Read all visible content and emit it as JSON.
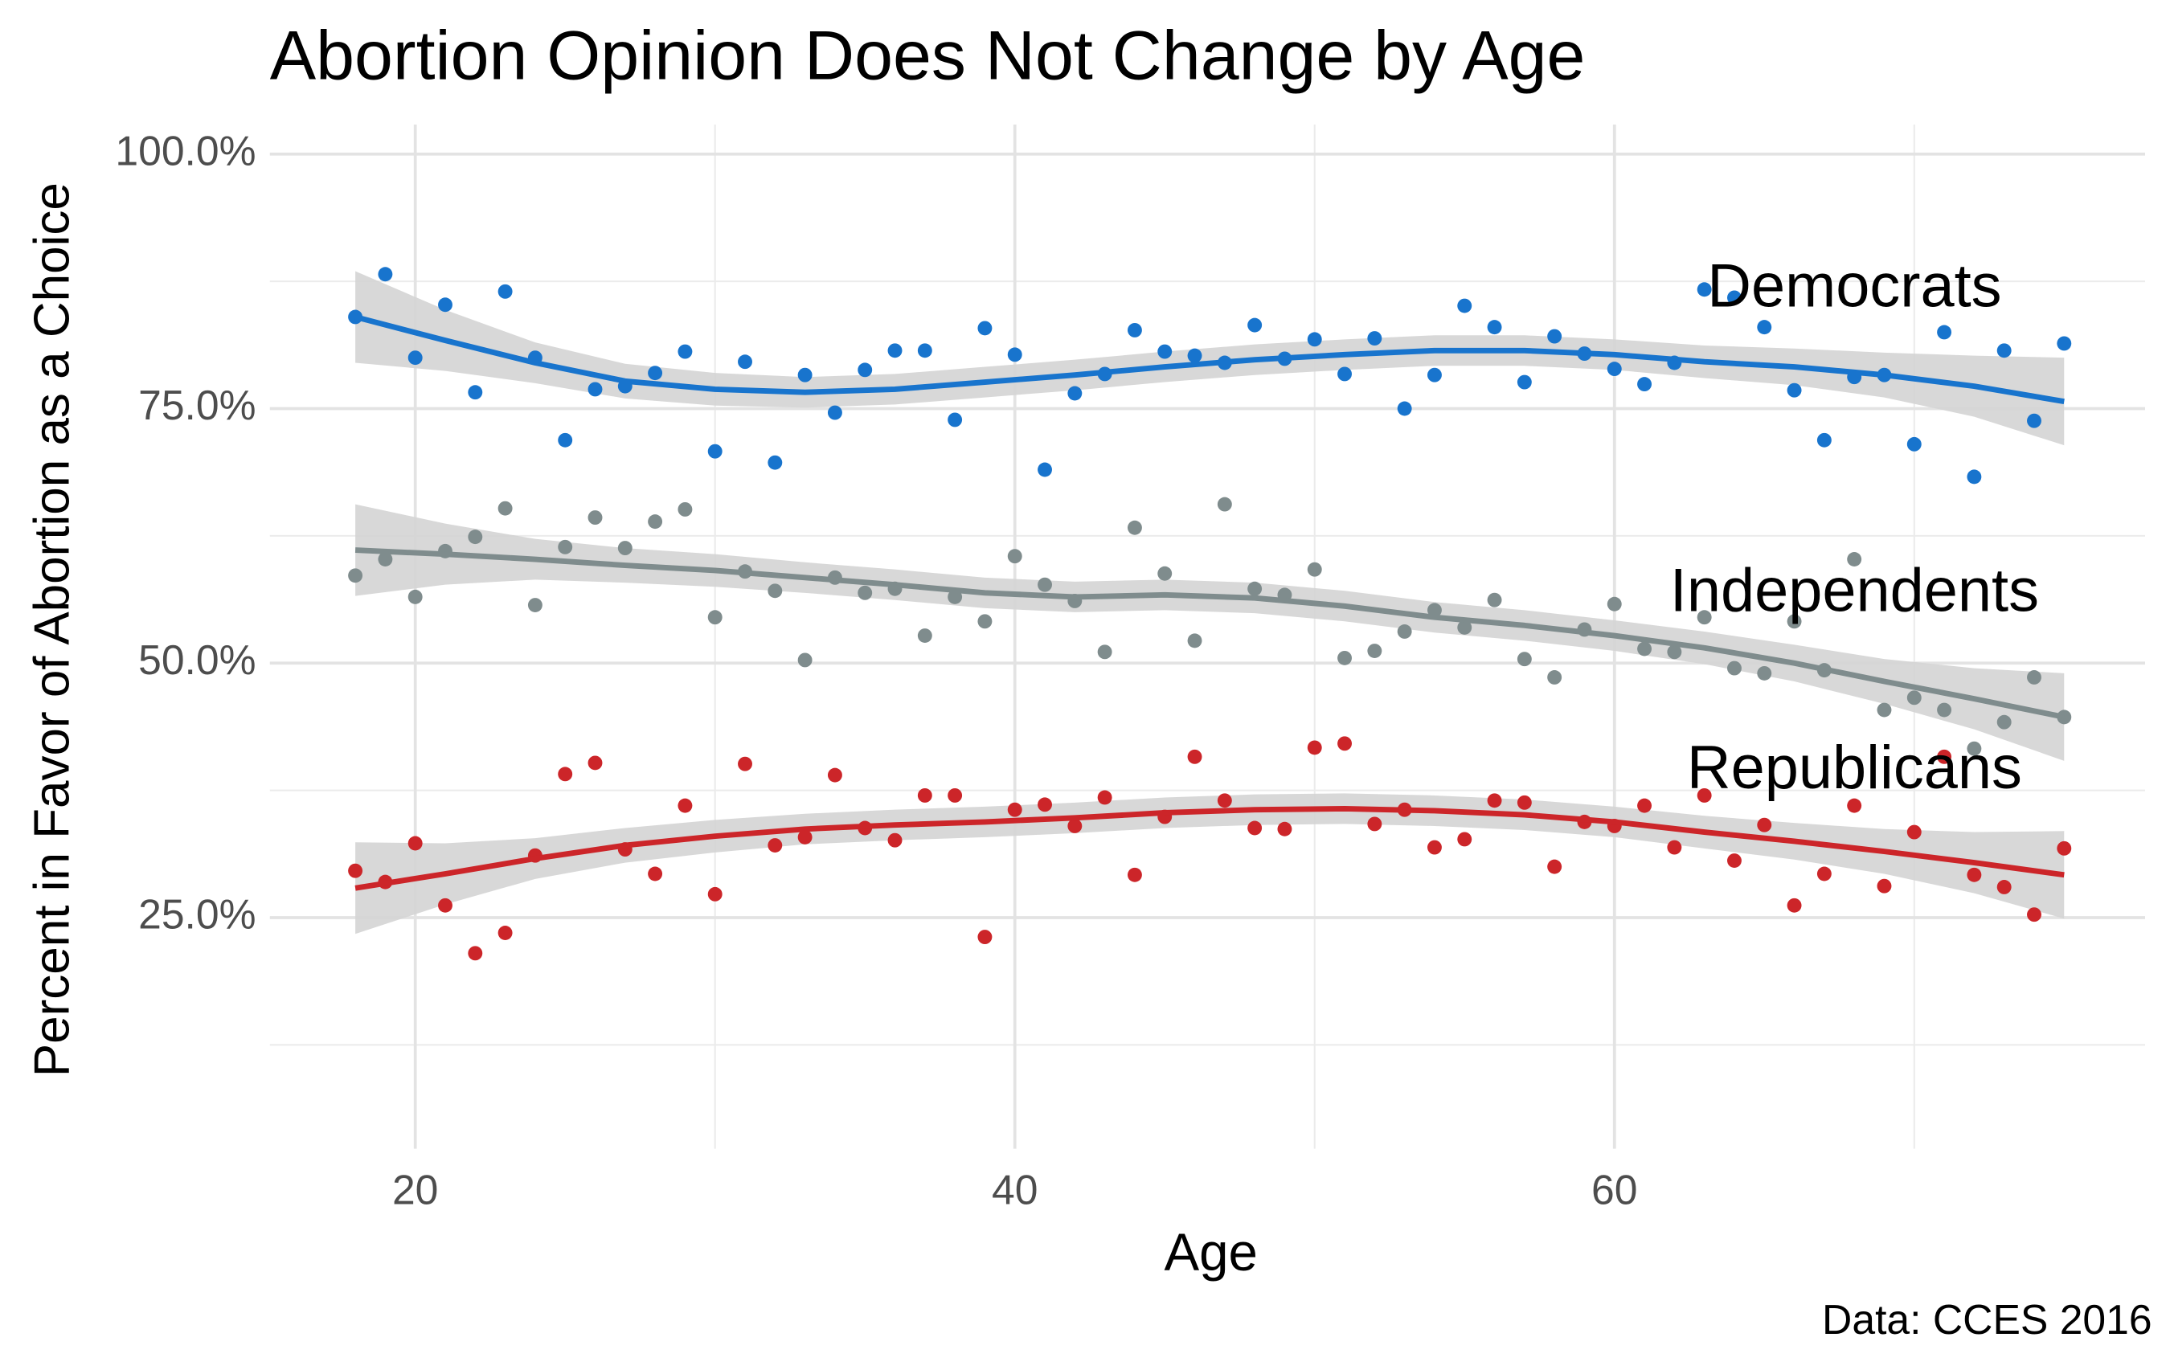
{
  "chart_data": {
    "type": "scatter",
    "title": "Abortion Opinion Does Not Change by Age",
    "xlabel": "Age",
    "ylabel": "Percent in Favor of Abortion as a Choice",
    "caption": "Data: CCES 2016",
    "xlim": [
      15.15,
      77.7
    ],
    "ylim": [
      2.3,
      102.9
    ],
    "xticks": [
      20,
      40,
      60
    ],
    "xminor": [
      30,
      50,
      70
    ],
    "yticks": [
      {
        "value": 25,
        "label": "25.0%"
      },
      {
        "value": 50,
        "label": "50.0%"
      },
      {
        "value": 75,
        "label": "75.0%"
      },
      {
        "value": 100,
        "label": "100.0%"
      }
    ],
    "yminor": [
      12.5,
      37.5,
      62.5,
      87.5
    ],
    "grid": true,
    "band_color": "#d4d4d4",
    "x": [
      18,
      19,
      20,
      21,
      22,
      23,
      24,
      25,
      26,
      27,
      28,
      29,
      30,
      31,
      32,
      33,
      34,
      35,
      36,
      37,
      38,
      39,
      40,
      41,
      42,
      43,
      44,
      45,
      46,
      47,
      48,
      49,
      50,
      51,
      52,
      53,
      54,
      55,
      56,
      57,
      58,
      59,
      60,
      61,
      62,
      63,
      64,
      65,
      66,
      67,
      68,
      69,
      70,
      71,
      72,
      73,
      74,
      75
    ],
    "fit_x": [
      18,
      21,
      24,
      27,
      30,
      33,
      36,
      39,
      42,
      45,
      48,
      51,
      54,
      57,
      60,
      63,
      66,
      69,
      72,
      75
    ],
    "series": [
      {
        "name": "Democrats",
        "color": "#1874cd",
        "values": [
          84.0,
          88.2,
          80.0,
          85.2,
          76.6,
          86.5,
          80.0,
          71.9,
          76.9,
          77.2,
          78.5,
          80.6,
          70.8,
          79.6,
          69.7,
          78.3,
          74.6,
          78.8,
          80.7,
          80.7,
          73.9,
          82.9,
          80.3,
          69.0,
          76.5,
          78.4,
          82.7,
          80.6,
          80.2,
          79.5,
          83.2,
          79.9,
          81.8,
          78.4,
          81.9,
          75.0,
          78.3,
          85.1,
          83.0,
          77.6,
          82.1,
          80.4,
          78.9,
          77.4,
          79.5,
          86.7,
          85.9,
          83.0,
          76.8,
          71.9,
          78.1,
          78.3,
          71.5,
          82.5,
          68.3,
          80.7,
          73.8,
          81.4
        ],
        "fit": [
          84.0,
          81.7,
          79.5,
          77.7,
          76.9,
          76.6,
          76.9,
          77.6,
          78.3,
          79.1,
          79.8,
          80.3,
          80.7,
          80.7,
          80.3,
          79.6,
          79.1,
          78.3,
          77.2,
          75.7
        ],
        "fit_lower": [
          79.5,
          78.7,
          77.5,
          76.0,
          75.3,
          75.1,
          75.4,
          76.1,
          76.8,
          77.6,
          78.3,
          78.8,
          79.2,
          79.2,
          78.8,
          78.0,
          77.3,
          76.1,
          74.2,
          71.4
        ],
        "fit_upper": [
          88.5,
          84.7,
          81.5,
          79.4,
          78.5,
          78.1,
          78.4,
          79.1,
          79.8,
          80.6,
          81.3,
          81.8,
          82.2,
          82.2,
          81.8,
          81.2,
          80.9,
          80.5,
          80.2,
          80.0
        ]
      },
      {
        "name": "Independents",
        "color": "#7f8c8d",
        "values": [
          58.6,
          60.2,
          56.5,
          61.0,
          62.4,
          65.2,
          55.7,
          61.4,
          64.3,
          61.3,
          63.9,
          65.1,
          54.5,
          59.0,
          57.1,
          50.3,
          58.4,
          56.9,
          57.3,
          52.7,
          56.5,
          54.1,
          60.5,
          57.7,
          56.1,
          51.1,
          63.3,
          58.8,
          52.2,
          65.6,
          57.3,
          56.7,
          59.2,
          50.5,
          51.2,
          53.1,
          55.2,
          53.5,
          56.2,
          50.4,
          48.6,
          53.3,
          55.8,
          51.4,
          51.1,
          54.5,
          49.5,
          49.0,
          54.1,
          49.3,
          60.2,
          45.4,
          46.6,
          45.4,
          41.6,
          44.2,
          48.6,
          44.7
        ],
        "fit": [
          61.1,
          60.7,
          60.2,
          59.6,
          59.1,
          58.4,
          57.7,
          56.9,
          56.5,
          56.7,
          56.4,
          55.6,
          54.5,
          53.7,
          52.7,
          51.5,
          50.0,
          48.2,
          46.5,
          44.7
        ],
        "fit_lower": [
          56.6,
          57.7,
          58.2,
          57.9,
          57.5,
          56.9,
          56.2,
          55.4,
          55.0,
          55.2,
          54.9,
          54.1,
          53.0,
          52.2,
          51.2,
          49.9,
          48.2,
          46.0,
          43.5,
          40.4
        ],
        "fit_upper": [
          65.6,
          63.7,
          62.2,
          61.3,
          60.7,
          59.9,
          59.2,
          58.4,
          58.0,
          58.2,
          57.9,
          57.1,
          56.0,
          55.2,
          54.2,
          53.1,
          51.8,
          50.4,
          49.5,
          49.0
        ]
      },
      {
        "name": "Republicans",
        "color": "#cc2529",
        "values": [
          29.6,
          28.5,
          32.3,
          26.2,
          21.5,
          23.5,
          31.1,
          39.1,
          40.2,
          31.7,
          29.3,
          36.0,
          27.3,
          40.1,
          32.1,
          32.9,
          39.0,
          33.8,
          32.6,
          37.0,
          37.0,
          23.1,
          35.6,
          36.1,
          34.0,
          36.8,
          29.2,
          34.9,
          40.8,
          36.5,
          33.8,
          33.7,
          41.7,
          42.1,
          34.2,
          35.6,
          31.9,
          32.7,
          36.5,
          36.3,
          30.0,
          34.4,
          34.0,
          36.0,
          31.9,
          37.0,
          30.6,
          34.1,
          26.2,
          29.3,
          36.0,
          28.1,
          33.4,
          40.8,
          29.2,
          28.0,
          25.3,
          31.8
        ],
        "fit": [
          27.9,
          29.3,
          30.8,
          32.1,
          33.0,
          33.7,
          34.1,
          34.4,
          34.8,
          35.3,
          35.6,
          35.7,
          35.5,
          35.1,
          34.4,
          33.4,
          32.5,
          31.5,
          30.4,
          29.2
        ],
        "fit_lower": [
          23.4,
          26.3,
          28.8,
          30.4,
          31.4,
          32.2,
          32.6,
          32.9,
          33.3,
          33.8,
          34.1,
          34.2,
          34.0,
          33.6,
          32.9,
          31.8,
          30.7,
          29.3,
          27.4,
          24.9
        ],
        "fit_upper": [
          32.4,
          32.3,
          32.8,
          33.8,
          34.6,
          35.2,
          35.6,
          35.9,
          36.3,
          36.8,
          37.1,
          37.2,
          37.0,
          36.6,
          35.9,
          35.0,
          34.3,
          33.7,
          33.4,
          33.5
        ]
      }
    ]
  }
}
